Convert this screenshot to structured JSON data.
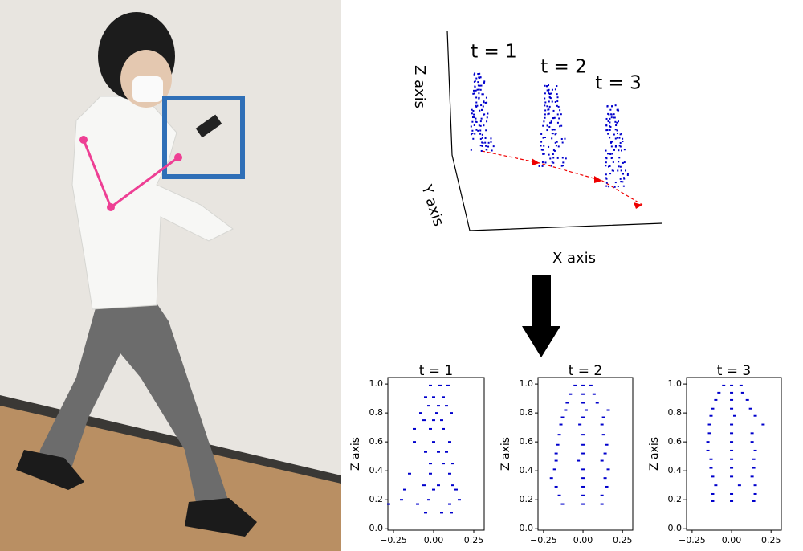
{
  "diagram": {
    "time_labels": [
      "t = 1",
      "t = 2",
      "t = 3"
    ],
    "z_axis": "Z axis",
    "y_axis": "Y axis",
    "x_axis": "X axis"
  },
  "chart_data": [
    {
      "type": "scatter",
      "title": "t = 1",
      "ylabel": "Z axis",
      "xlim": [
        -0.285,
        0.315
      ],
      "ylim": [
        -0.01,
        1.045
      ],
      "xticks": [
        {
          "value": -0.25,
          "label": "−0.25"
        },
        {
          "value": 0,
          "label": "0.00"
        },
        0.25
      ],
      "yticks": [
        {
          "value": 0,
          "label": "0.0"
        },
        0.2,
        0.4,
        0.6,
        0.8,
        {
          "value": 1,
          "label": "1.0"
        }
      ],
      "series": [
        {
          "color": "#0000cc",
          "x": [
            -0.02,
            0.04,
            0.09,
            -0.05,
            0,
            0.06,
            -0.03,
            0.03,
            0.08,
            -0.08,
            0.02,
            0.11,
            -0.06,
            0,
            0.05,
            -0.12,
            -0.02,
            0.06,
            -0.12,
            0,
            0.1,
            -0.05,
            0.03,
            0.08,
            -0.02,
            0.06,
            0.12,
            -0.15,
            -0.02,
            0.1,
            -0.06,
            0.03,
            0.12,
            -0.18,
            0,
            0.14,
            -0.2,
            -0.03,
            0.16,
            -0.28,
            -0.1,
            0.1,
            -0.05,
            0.05,
            0.11
          ],
          "y": [
            0.99,
            0.99,
            0.99,
            0.91,
            0.91,
            0.91,
            0.85,
            0.85,
            0.85,
            0.8,
            0.8,
            0.8,
            0.75,
            0.75,
            0.75,
            0.69,
            0.69,
            0.69,
            0.6,
            0.6,
            0.6,
            0.53,
            0.53,
            0.53,
            0.45,
            0.45,
            0.45,
            0.38,
            0.38,
            0.38,
            0.3,
            0.3,
            0.3,
            0.27,
            0.27,
            0.27,
            0.2,
            0.2,
            0.2,
            0.17,
            0.17,
            0.17,
            0.11,
            0.11,
            0.11
          ]
        }
      ]
    },
    {
      "type": "scatter",
      "title": "t = 2",
      "ylabel": "Z axis",
      "xlim": [
        -0.285,
        0.315
      ],
      "ylim": [
        -0.01,
        1.045
      ],
      "xticks": [
        {
          "value": -0.25,
          "label": "−0.25"
        },
        {
          "value": 0,
          "label": "0.00"
        },
        0.25
      ],
      "yticks": [
        {
          "value": 0,
          "label": "0.0"
        },
        0.2,
        0.4,
        0.6,
        0.8,
        {
          "value": 1,
          "label": "1.0"
        }
      ],
      "series": [
        {
          "color": "#0000cc",
          "x": [
            -0.05,
            0,
            0.05,
            -0.08,
            0,
            0.07,
            -0.1,
            0,
            0.09,
            -0.11,
            0.02,
            0.16,
            -0.13,
            0,
            0.13,
            -0.14,
            -0.02,
            0.12,
            -0.15,
            0,
            0.13,
            -0.16,
            0,
            0.15,
            -0.17,
            0,
            0.14,
            -0.17,
            -0.03,
            0.12,
            -0.18,
            0,
            0.16,
            -0.2,
            0,
            0.14,
            -0.17,
            0,
            0.15,
            -0.15,
            0,
            0.12,
            -0.13,
            0,
            0.12
          ],
          "y": [
            0.99,
            0.99,
            0.99,
            0.93,
            0.93,
            0.93,
            0.87,
            0.87,
            0.87,
            0.82,
            0.82,
            0.82,
            0.77,
            0.77,
            0.77,
            0.72,
            0.72,
            0.72,
            0.65,
            0.65,
            0.65,
            0.58,
            0.58,
            0.58,
            0.52,
            0.52,
            0.52,
            0.47,
            0.47,
            0.47,
            0.41,
            0.41,
            0.41,
            0.35,
            0.35,
            0.35,
            0.29,
            0.29,
            0.29,
            0.23,
            0.23,
            0.23,
            0.17,
            0.17,
            0.17
          ]
        }
      ]
    },
    {
      "type": "scatter",
      "title": "t = 3",
      "ylabel": "Z axis",
      "xlim": [
        -0.285,
        0.315
      ],
      "ylim": [
        -0.01,
        1.045
      ],
      "xticks": [
        {
          "value": -0.25,
          "label": "−0.25"
        },
        {
          "value": 0,
          "label": "0.00"
        },
        0.25
      ],
      "yticks": [
        {
          "value": 0,
          "label": "0.0"
        },
        0.2,
        0.4,
        0.6,
        0.8,
        {
          "value": 1,
          "label": "1.0"
        }
      ],
      "series": [
        {
          "color": "#0000cc",
          "x": [
            -0.05,
            0,
            0.06,
            -0.08,
            0,
            0.07,
            -0.1,
            0,
            0.1,
            -0.12,
            0,
            0.12,
            -0.13,
            0.02,
            0.15,
            -0.14,
            0,
            0.2,
            -0.14,
            0,
            0.13,
            -0.15,
            0,
            0.13,
            -0.15,
            0,
            0.15,
            -0.13,
            0,
            0.14,
            -0.13,
            0,
            0.14,
            -0.12,
            0,
            0.13,
            -0.1,
            0.05,
            0.15,
            -0.12,
            0,
            0.15,
            -0.12,
            0,
            0.14
          ],
          "y": [
            0.99,
            0.99,
            0.99,
            0.94,
            0.94,
            0.94,
            0.89,
            0.89,
            0.89,
            0.83,
            0.83,
            0.83,
            0.78,
            0.78,
            0.78,
            0.72,
            0.72,
            0.72,
            0.66,
            0.66,
            0.66,
            0.6,
            0.6,
            0.6,
            0.54,
            0.54,
            0.54,
            0.48,
            0.48,
            0.48,
            0.42,
            0.42,
            0.42,
            0.36,
            0.36,
            0.36,
            0.3,
            0.3,
            0.3,
            0.24,
            0.24,
            0.24,
            0.19,
            0.19,
            0.19
          ]
        }
      ]
    }
  ]
}
